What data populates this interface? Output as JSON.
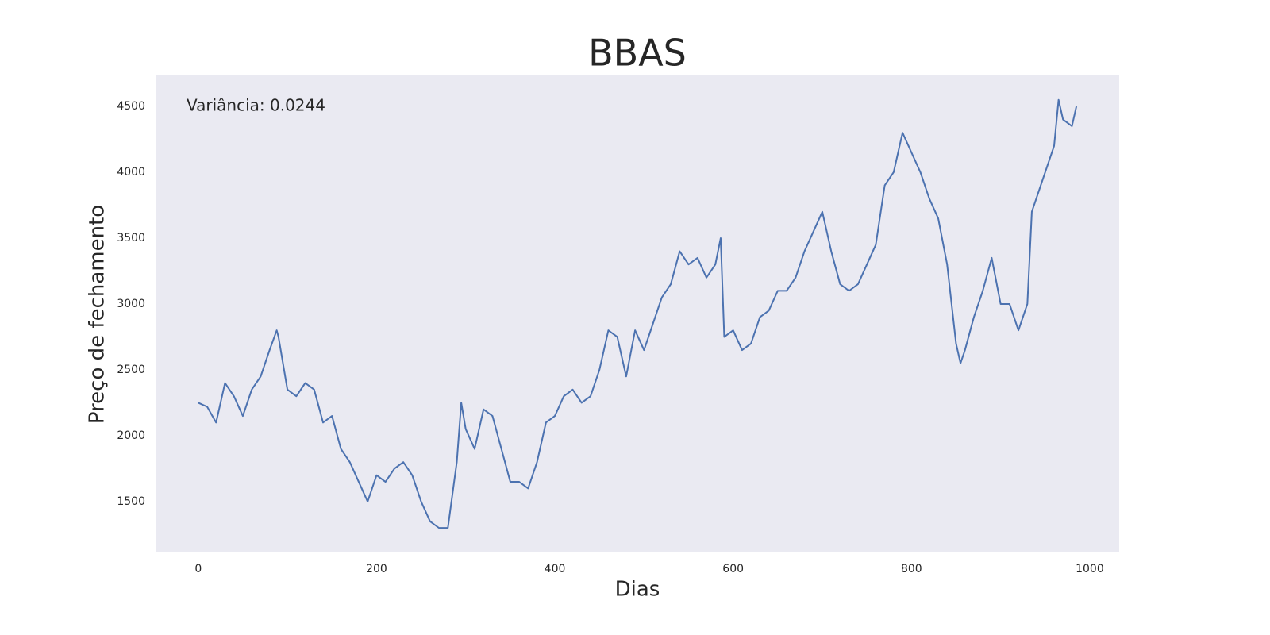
{
  "chart_data": {
    "type": "line",
    "title": "BBAS",
    "annotation": "Variância: 0.0244",
    "x_label": "Dias",
    "y_label": "Preço de fechamento",
    "x": [
      0,
      10,
      20,
      30,
      40,
      50,
      60,
      70,
      80,
      88,
      90,
      100,
      110,
      120,
      130,
      140,
      150,
      160,
      170,
      180,
      190,
      200,
      210,
      220,
      230,
      240,
      250,
      260,
      270,
      280,
      290,
      295,
      300,
      310,
      320,
      330,
      340,
      350,
      360,
      370,
      380,
      390,
      400,
      410,
      420,
      430,
      440,
      450,
      460,
      470,
      480,
      490,
      500,
      510,
      520,
      530,
      540,
      550,
      560,
      570,
      580,
      586,
      590,
      600,
      610,
      620,
      630,
      640,
      650,
      660,
      670,
      680,
      690,
      700,
      710,
      720,
      730,
      740,
      750,
      760,
      770,
      780,
      790,
      800,
      810,
      820,
      830,
      840,
      850,
      855,
      860,
      870,
      880,
      890,
      900,
      910,
      920,
      930,
      935,
      940,
      950,
      960,
      965,
      970,
      980,
      985
    ],
    "series": [
      {
        "name": "BBAS",
        "color": "#4c72b0",
        "values": [
          2250,
          2220,
          2100,
          2400,
          2300,
          2150,
          2350,
          2450,
          2650,
          2800,
          2750,
          2350,
          2300,
          2400,
          2350,
          2100,
          2150,
          1900,
          1800,
          1650,
          1500,
          1700,
          1650,
          1750,
          1800,
          1700,
          1500,
          1350,
          1300,
          1300,
          1800,
          2250,
          2050,
          1900,
          2200,
          2150,
          1900,
          1650,
          1650,
          1600,
          1800,
          2100,
          2150,
          2300,
          2350,
          2250,
          2300,
          2500,
          2800,
          2750,
          2450,
          2800,
          2650,
          2850,
          3050,
          3150,
          3400,
          3300,
          3350,
          3200,
          3300,
          3500,
          2750,
          2800,
          2650,
          2700,
          2900,
          2950,
          3100,
          3100,
          3200,
          3400,
          3550,
          3700,
          3400,
          3150,
          3100,
          3150,
          3300,
          3450,
          3900,
          4000,
          4300,
          4150,
          4000,
          3800,
          3650,
          3300,
          2700,
          2550,
          2650,
          2900,
          3100,
          3350,
          3000,
          3000,
          2800,
          3000,
          3700,
          3800,
          4000,
          4200,
          4550,
          4400,
          4350,
          4500
        ]
      }
    ],
    "xlim": [
      -47,
      1033
    ],
    "ylim": [
      1114,
      4735
    ],
    "xticks": [
      0,
      200,
      400,
      600,
      800,
      1000
    ],
    "yticks": [
      1500,
      2000,
      2500,
      3000,
      3500,
      4000,
      4500
    ],
    "grid": false,
    "background": "#eaeaf2"
  }
}
